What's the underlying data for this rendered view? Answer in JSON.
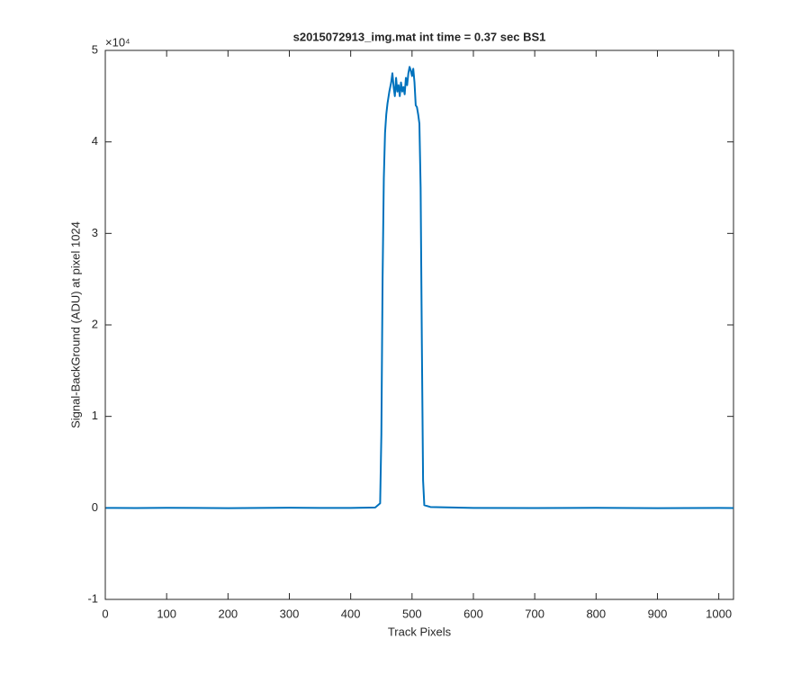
{
  "chart_data": {
    "type": "line",
    "title": "s2015072913_img.mat int time = 0.37 sec   BS1",
    "xlabel": "Track Pixels",
    "ylabel": "Signal-BackGround (ADU) at pixel 1024",
    "y_scale_label": "×10⁴",
    "xlim": [
      0,
      1024
    ],
    "xticks": [
      0,
      100,
      200,
      300,
      400,
      500,
      600,
      700,
      800,
      900,
      1000
    ],
    "ylim": [
      -1,
      5
    ],
    "yticks": [
      -1,
      0,
      1,
      2,
      3,
      4,
      5
    ],
    "grid": false,
    "series": [
      {
        "color": "#0072bd",
        "x": [
          1,
          50,
          100,
          150,
          200,
          250,
          300,
          350,
          400,
          440,
          448,
          450,
          452,
          454,
          456,
          458,
          460,
          463,
          466,
          468,
          470,
          472,
          474,
          476,
          478,
          480,
          482,
          484,
          486,
          488,
          490,
          492,
          494,
          496,
          498,
          500,
          502,
          504,
          506,
          508,
          510,
          512,
          514,
          516,
          518,
          520,
          530,
          600,
          700,
          800,
          900,
          1000,
          1024
        ],
        "values": [
          0,
          -0.002,
          0.001,
          0,
          -0.003,
          0,
          0.002,
          -0.001,
          0,
          0.005,
          0.05,
          0.8,
          2.5,
          3.6,
          4.1,
          4.3,
          4.42,
          4.55,
          4.65,
          4.75,
          4.6,
          4.5,
          4.7,
          4.55,
          4.62,
          4.5,
          4.65,
          4.55,
          4.6,
          4.52,
          4.7,
          4.62,
          4.75,
          4.82,
          4.78,
          4.72,
          4.8,
          4.65,
          4.4,
          4.38,
          4.3,
          4.2,
          3.5,
          1.8,
          0.3,
          0.03,
          0.01,
          0,
          -0.002,
          0.001,
          -0.003,
          0,
          -0.002
        ]
      }
    ]
  }
}
